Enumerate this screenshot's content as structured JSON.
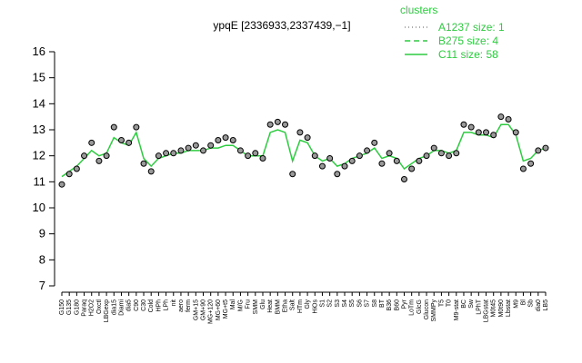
{
  "chart_data": {
    "type": "line",
    "title": "ypqE [2336933,2337439,−1]",
    "ylim": [
      7,
      16
    ],
    "yticks": [
      7,
      8,
      9,
      10,
      11,
      12,
      13,
      14,
      15,
      16
    ],
    "legend_title": "clusters",
    "legend_position": "top-right",
    "legend": [
      {
        "label": "A1237 size: 1",
        "dash": "1,3",
        "color": "#2ecc40"
      },
      {
        "label": "B275 size: 4",
        "dash": "6,4",
        "color": "#2ecc40"
      },
      {
        "label": "C11 size: 58",
        "dash": "none",
        "color": "#2ecc40"
      }
    ],
    "categories": [
      "G150",
      "G135",
      "G180",
      "Paraq",
      "H2O2",
      "Oxctl",
      "LBGexp",
      "dia15",
      "Diami",
      "dia5",
      "C90",
      "C30",
      "Cold",
      "HPh",
      "LPh",
      "nit",
      "aero",
      "ferm",
      "GM+15",
      "GM+90",
      "MG+120",
      "MG+60",
      "MG+t5",
      "Mal",
      "M/G",
      "Fru",
      "SMM",
      "Glu",
      "Heat",
      "BMM",
      "Etha",
      "Salt",
      "HTm",
      "Gly",
      "HiOs",
      "S1",
      "S2",
      "S3",
      "S4",
      "S5",
      "S6",
      "S7",
      "S8",
      "BT",
      "B36",
      "B60",
      "Pyr",
      "LoTm",
      "GlcG",
      "Glucon",
      "SMMPy",
      "T5",
      "T0",
      "M9-stat",
      "BC",
      "Sw",
      "LPhT",
      "LBGstat",
      "M0t45",
      "M0t90",
      "Lbstat",
      "M9",
      "Bl",
      "Sb",
      "dia0",
      "LB5"
    ],
    "points": [
      10.9,
      11.3,
      11.5,
      12.0,
      12.5,
      11.8,
      12.0,
      13.1,
      12.6,
      12.5,
      13.1,
      11.7,
      11.4,
      12.0,
      12.1,
      12.1,
      12.2,
      12.3,
      12.4,
      12.2,
      12.4,
      12.6,
      12.7,
      12.6,
      12.2,
      12.0,
      12.1,
      11.9,
      13.2,
      13.3,
      13.2,
      11.3,
      12.9,
      12.7,
      12.0,
      11.6,
      11.9,
      11.3,
      11.6,
      11.8,
      12.0,
      12.2,
      12.5,
      11.7,
      12.1,
      11.8,
      11.1,
      11.5,
      11.8,
      12.0,
      12.3,
      12.1,
      12.0,
      12.1,
      13.2,
      13.1,
      12.9,
      12.9,
      12.8,
      13.5,
      13.4,
      12.9,
      11.5,
      11.7,
      12.2,
      12.3
    ],
    "points_color": "#999999",
    "series": [
      {
        "name": "C11 size: 58",
        "color": "#2ecc40",
        "values": [
          11.2,
          11.4,
          11.6,
          11.9,
          12.2,
          12.0,
          12.1,
          12.7,
          12.5,
          12.4,
          12.9,
          11.9,
          11.6,
          11.9,
          12.0,
          12.1,
          12.1,
          12.2,
          12.2,
          12.2,
          12.3,
          12.3,
          12.4,
          12.4,
          12.2,
          12.0,
          12.0,
          12.0,
          12.9,
          13.0,
          12.9,
          11.8,
          12.6,
          12.5,
          12.0,
          11.8,
          11.9,
          11.6,
          11.7,
          11.9,
          12.0,
          12.1,
          12.3,
          11.9,
          12.0,
          11.9,
          11.5,
          11.7,
          11.9,
          12.0,
          12.2,
          12.2,
          12.1,
          12.2,
          12.9,
          12.9,
          12.8,
          12.8,
          12.7,
          13.2,
          13.2,
          12.8,
          11.8,
          11.9,
          12.2,
          12.3
        ]
      }
    ]
  }
}
